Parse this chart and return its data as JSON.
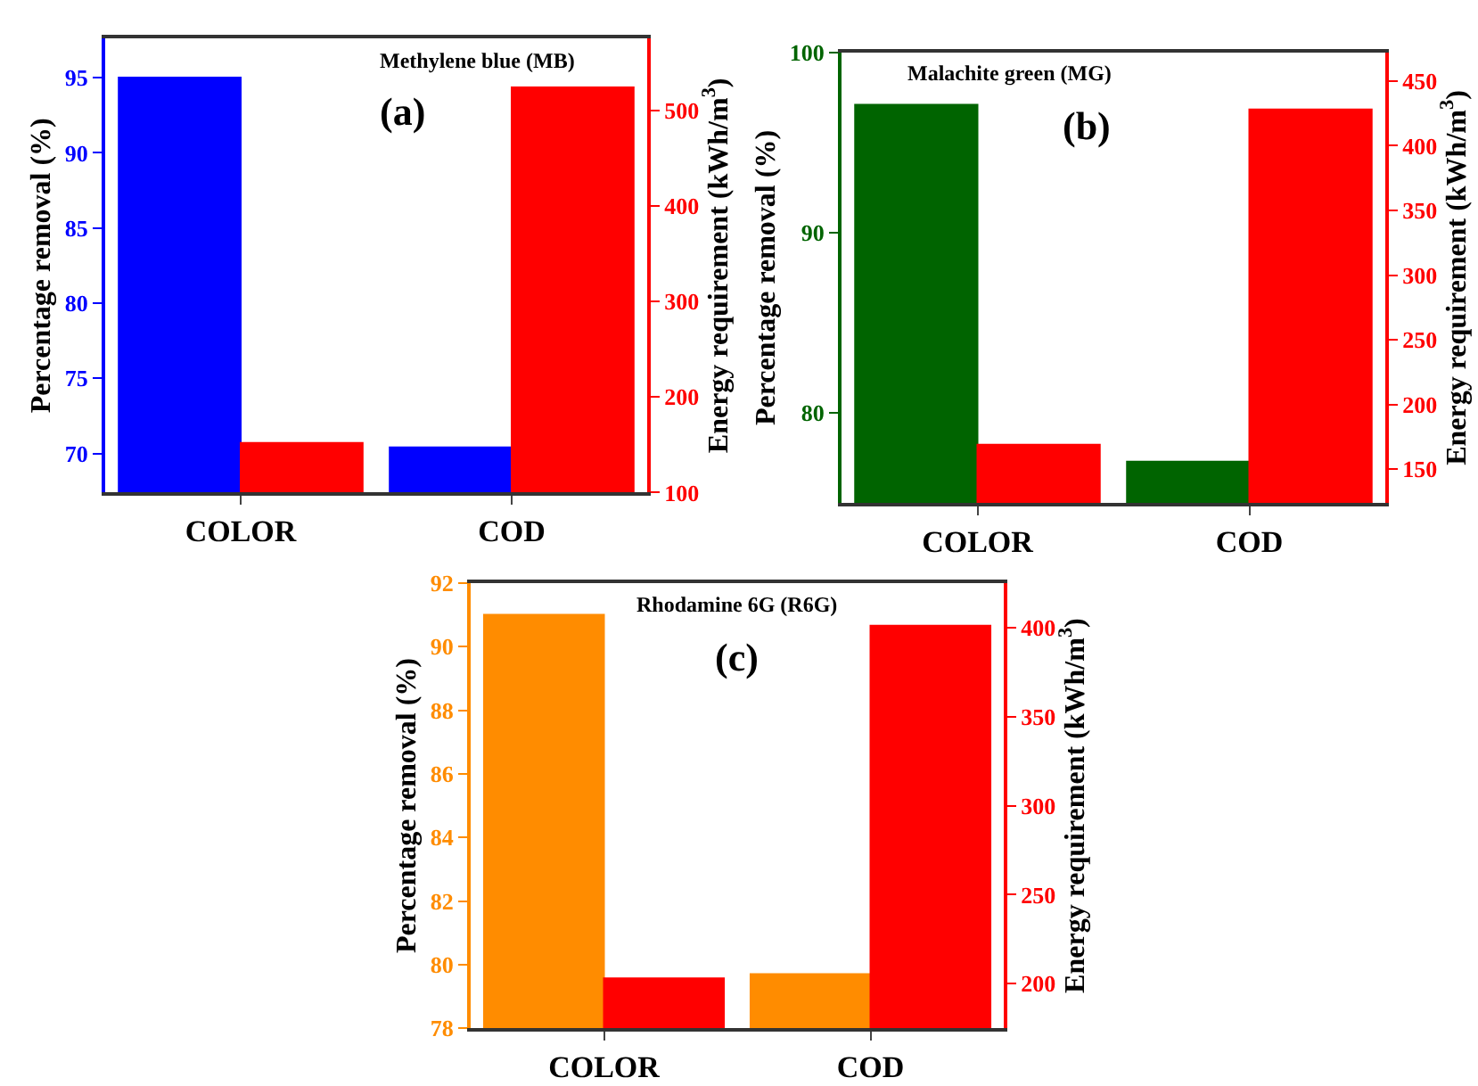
{
  "chart_data": [
    {
      "type": "bar",
      "categories": [
        "COLOR",
        "COD"
      ],
      "ylabel": "Percentage removal (%)",
      "y2label": "Energy requirement (kWh/m$^{3}$)",
      "annotations": [
        "Methylene blue (MB)",
        "(a)"
      ],
      "series": [
        {
          "color": "#0000ff",
          "values": [
            95,
            70.4
          ]
        },
        {
          "color": "#ff0000",
          "values": [
            152,
            524
          ],
          "axis": "y2"
        }
      ],
      "ylim": [
        67.4,
        97.6
      ],
      "yticks": [
        70,
        75,
        80,
        85,
        90,
        95
      ],
      "y2lim": [
        100,
        575
      ],
      "y2ticks": [
        100,
        200,
        300,
        400,
        500
      ]
    },
    {
      "type": "bar",
      "categories": [
        "COLOR",
        "COD"
      ],
      "ylabel": "Percentage removal (%)",
      "y2label": "Energy requirement (kWh/m$^{3}$)",
      "annotations": [
        "Malachite green (MG)",
        "(b)"
      ],
      "series": [
        {
          "color": "#006400",
          "values": [
            97.1,
            77.3
          ]
        },
        {
          "color": "#ff0000",
          "values": [
            169,
            428
          ],
          "axis": "y2"
        }
      ],
      "ylim": [
        75,
        100
      ],
      "yticks": [
        80,
        90,
        100
      ],
      "y2lim": [
        124,
        472
      ],
      "y2ticks": [
        150,
        200,
        250,
        300,
        350,
        400,
        450
      ]
    },
    {
      "type": "bar",
      "categories": [
        "COLOR",
        "COD"
      ],
      "ylabel": "Percentage removal (%)",
      "y2label": "Energy requirement (kWh/m$^{3}$)",
      "annotations": [
        "Rhodamine 6G (R6G)",
        "(c)"
      ],
      "series": [
        {
          "color": "#ff8c00",
          "values": [
            91,
            79.7
          ]
        },
        {
          "color": "#ff0000",
          "values": [
            203,
            401
          ],
          "axis": "y2"
        }
      ],
      "ylim": [
        78,
        92
      ],
      "yticks": [
        78,
        80,
        82,
        84,
        86,
        88,
        90,
        92
      ],
      "y2lim": [
        175,
        425
      ],
      "y2ticks": [
        200,
        250,
        300,
        350,
        400
      ]
    }
  ]
}
